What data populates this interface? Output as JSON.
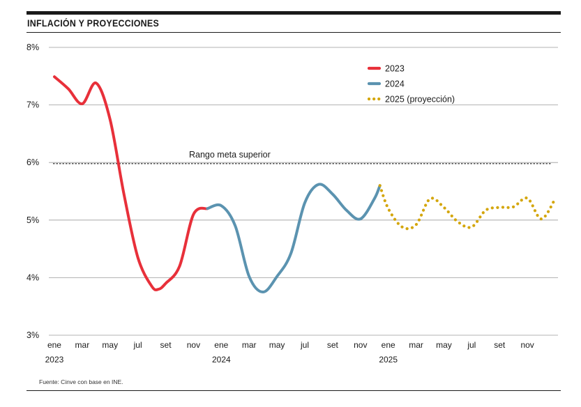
{
  "header": {
    "title": "INFLACIÓN Y PROYECCIONES"
  },
  "footer": {
    "source": "Fuente: Cinve con base en INE."
  },
  "chart_data": {
    "type": "line",
    "title": "INFLACIÓN Y PROYECCIONES",
    "xlabel": "",
    "ylabel": "",
    "ylim": [
      3,
      8
    ],
    "y_ticks": [
      "3%",
      "4%",
      "5%",
      "6%",
      "7%",
      "8%"
    ],
    "y_tick_values": [
      3,
      4,
      5,
      6,
      7,
      8
    ],
    "grid": true,
    "legend_position": "top-right",
    "x_ticks": [
      {
        "x": 1,
        "label": "ene",
        "year": "2023"
      },
      {
        "x": 3,
        "label": "mar"
      },
      {
        "x": 5,
        "label": "may"
      },
      {
        "x": 7,
        "label": "jul"
      },
      {
        "x": 9,
        "label": "set"
      },
      {
        "x": 11,
        "label": "nov"
      },
      {
        "x": 13,
        "label": "ene",
        "year": "2024"
      },
      {
        "x": 15,
        "label": "mar"
      },
      {
        "x": 17,
        "label": "may"
      },
      {
        "x": 19,
        "label": "jul"
      },
      {
        "x": 21,
        "label": "set"
      },
      {
        "x": 23,
        "label": "nov"
      },
      {
        "x": 25,
        "label": "ene",
        "year": "2025"
      },
      {
        "x": 27,
        "label": "mar"
      },
      {
        "x": 29,
        "label": "may"
      },
      {
        "x": 31,
        "label": "jul"
      },
      {
        "x": 33,
        "label": "set"
      },
      {
        "x": 35,
        "label": "nov"
      }
    ],
    "x_range": [
      0.6,
      37.2
    ],
    "reference_line": {
      "value": 5.98,
      "label": "Rango meta superior"
    },
    "series": [
      {
        "name": "2023",
        "color": "#e8303a",
        "style": "solid",
        "points": [
          [
            1,
            7.49
          ],
          [
            2,
            7.28
          ],
          [
            3,
            7.02
          ],
          [
            4,
            7.38
          ],
          [
            5,
            6.75
          ],
          [
            6,
            5.45
          ],
          [
            7,
            4.35
          ],
          [
            8,
            3.85
          ],
          [
            8.5,
            3.8
          ],
          [
            9,
            3.9
          ],
          [
            10,
            4.2
          ],
          [
            11,
            5.1
          ],
          [
            12,
            5.2
          ]
        ]
      },
      {
        "name": "2024",
        "color": "#5b93b0",
        "style": "solid",
        "points": [
          [
            12,
            5.2
          ],
          [
            13,
            5.25
          ],
          [
            14,
            4.9
          ],
          [
            15,
            4.02
          ],
          [
            16,
            3.75
          ],
          [
            17,
            4.02
          ],
          [
            18,
            4.42
          ],
          [
            19,
            5.3
          ],
          [
            20,
            5.62
          ],
          [
            21,
            5.45
          ],
          [
            22,
            5.17
          ],
          [
            23,
            5.02
          ],
          [
            24,
            5.37
          ],
          [
            24.4,
            5.6
          ]
        ]
      },
      {
        "name": "2025 (proyección)",
        "color": "#d4a60c",
        "style": "dotted",
        "points": [
          [
            24.4,
            5.6
          ],
          [
            25,
            5.2
          ],
          [
            26,
            4.88
          ],
          [
            27,
            4.92
          ],
          [
            28,
            5.37
          ],
          [
            29,
            5.22
          ],
          [
            30,
            4.97
          ],
          [
            31,
            4.88
          ],
          [
            32,
            5.17
          ],
          [
            33,
            5.22
          ],
          [
            34,
            5.23
          ],
          [
            35,
            5.38
          ],
          [
            36,
            5.02
          ],
          [
            37,
            5.37
          ]
        ]
      }
    ]
  }
}
